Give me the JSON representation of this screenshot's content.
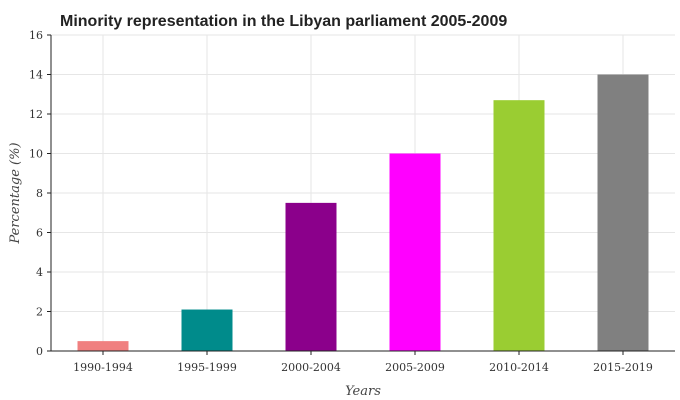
{
  "chart_data": {
    "type": "bar",
    "title": "Minority representation in the Libyan parliament 2005-2009",
    "xlabel": "Years",
    "ylabel": "Percentage (%)",
    "categories": [
      "1990-1994",
      "1995-1999",
      "2000-2004",
      "2005-2009",
      "2010-2014",
      "2015-2019"
    ],
    "values": [
      0.5,
      2.1,
      7.5,
      10.0,
      12.7,
      14.0
    ],
    "colors": [
      "#f08080",
      "#008b8b",
      "#8b008b",
      "#ff00ff",
      "#9acd32",
      "#808080"
    ],
    "ylim": [
      0,
      16
    ],
    "yticks": [
      0,
      2,
      4,
      6,
      8,
      10,
      12,
      14,
      16
    ],
    "grid": true,
    "legend": "none"
  }
}
